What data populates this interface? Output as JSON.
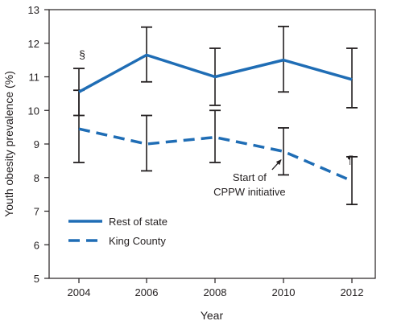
{
  "chart_data": {
    "type": "line",
    "title": "",
    "xlabel": "Year",
    "ylabel": "Youth obesity prevalence (%)",
    "x": [
      "2004",
      "2006",
      "2008",
      "2010",
      "2012"
    ],
    "ylim": [
      5,
      13
    ],
    "yticks": [
      "5",
      "6",
      "7",
      "8",
      "9",
      "10",
      "11",
      "12",
      "13"
    ],
    "grid": false,
    "legend_position": "bottom-left",
    "series": [
      {
        "name": "Rest of state",
        "style": "solid",
        "color": "#1f6db5",
        "values": [
          10.55,
          11.65,
          11.0,
          11.5,
          10.92
        ],
        "ci_low": [
          9.85,
          10.85,
          10.15,
          10.55,
          10.08
        ],
        "ci_high": [
          11.25,
          12.48,
          11.85,
          12.5,
          11.85
        ]
      },
      {
        "name": "King County",
        "style": "dashed",
        "color": "#1f6db5",
        "values": [
          9.45,
          9.0,
          9.2,
          8.78,
          7.9
        ],
        "ci_low": [
          8.45,
          8.2,
          8.45,
          8.08,
          7.2
        ],
        "ci_high": [
          10.6,
          9.85,
          10.0,
          9.48,
          8.62
        ]
      }
    ],
    "annotations": [
      {
        "text": "§",
        "x": "2004",
        "y": 11.55
      },
      {
        "text": "¶",
        "x": "2012",
        "y": 8.42
      },
      {
        "text_lines": [
          "Start of",
          "CPPW initiative"
        ],
        "x": "2009",
        "y": 7.9,
        "arrow_to_x": "2010",
        "arrow_to_y": 8.6
      }
    ]
  }
}
